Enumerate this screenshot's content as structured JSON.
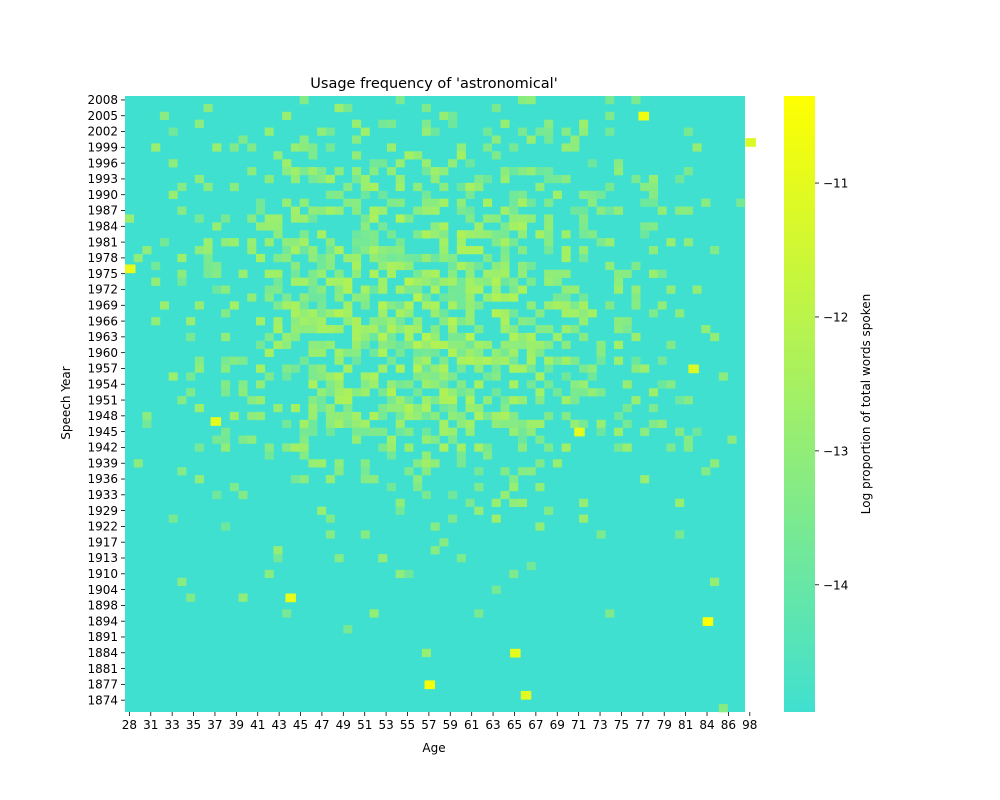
{
  "chart_data": {
    "type": "heatmap",
    "title": "Usage frequency of 'astronomical'",
    "xlabel": "Age",
    "ylabel": "Speech Year",
    "x_tick_labels": [
      "28",
      "31",
      "33",
      "35",
      "37",
      "39",
      "41",
      "43",
      "45",
      "47",
      "49",
      "51",
      "53",
      "55",
      "57",
      "59",
      "61",
      "63",
      "65",
      "67",
      "69",
      "71",
      "73",
      "75",
      "77",
      "79",
      "81",
      "84",
      "86",
      "98"
    ],
    "y_tick_labels": [
      "2008",
      "2005",
      "2002",
      "1999",
      "1996",
      "1993",
      "1990",
      "1987",
      "1984",
      "1981",
      "1978",
      "1975",
      "1972",
      "1969",
      "1966",
      "1963",
      "1960",
      "1957",
      "1954",
      "1951",
      "1948",
      "1945",
      "1942",
      "1939",
      "1936",
      "1933",
      "1929",
      "1922",
      "1917",
      "1913",
      "1910",
      "1904",
      "1898",
      "1894",
      "1891",
      "1884",
      "1881",
      "1877",
      "1874"
    ],
    "colorbar": {
      "label": "Log proportion of total words spoken",
      "ticks": [
        -11,
        -12,
        -13,
        -14
      ],
      "tick_labels": [
        "−11",
        "−12",
        "−13",
        "−14"
      ],
      "range": [
        -14.95,
        -10.35
      ],
      "colors": [
        "#40e0d0",
        "#ffff00"
      ]
    },
    "background_value": -14.95,
    "hotspots": [
      {
        "age": "84",
        "year": "1894",
        "value": -10.4
      },
      {
        "age": "57",
        "year": "1877",
        "value": -10.6
      },
      {
        "age": "77",
        "year": "2005",
        "value": -10.7
      },
      {
        "age": "71",
        "year": "1945",
        "value": -11.0
      },
      {
        "age": "82",
        "year": "1957",
        "value": -11.2
      },
      {
        "age": "65",
        "year": "1884",
        "value": -11.0
      },
      {
        "age": "28",
        "year": "1976",
        "value": -10.9
      },
      {
        "age": "98",
        "year": "2000",
        "value": -11.2
      },
      {
        "age": "37",
        "year": "1947",
        "value": -11.0
      },
      {
        "age": "44",
        "year": "1901",
        "value": -10.9
      },
      {
        "age": "66",
        "year": "1875",
        "value": -11.1
      }
    ]
  }
}
